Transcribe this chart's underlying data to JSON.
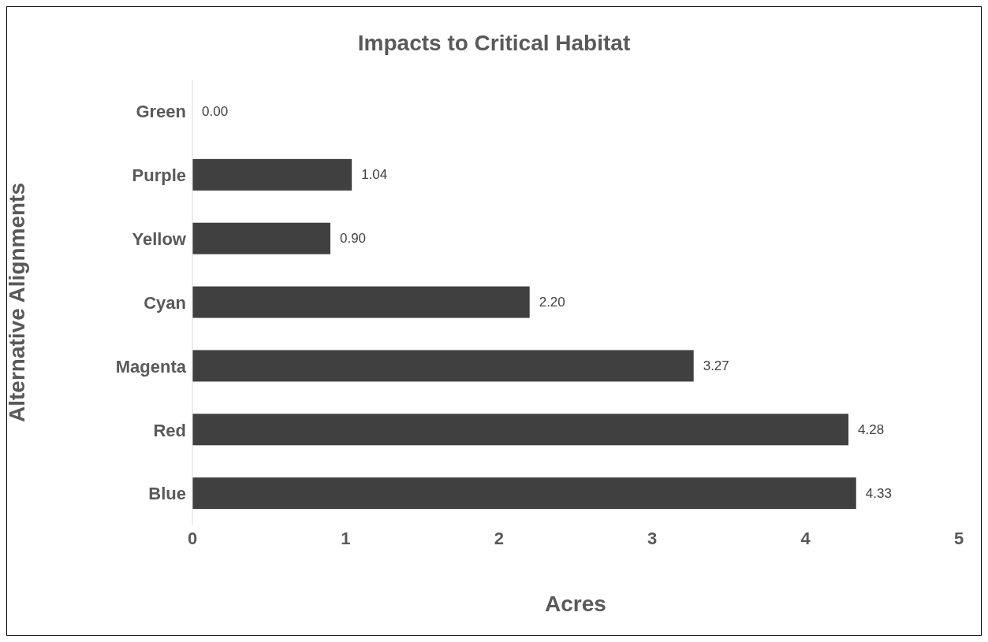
{
  "chart_data": {
    "type": "bar",
    "orientation": "horizontal",
    "title": "Impacts to Critical Habitat",
    "xlabel": "Acres",
    "ylabel": "Alternative Alignments",
    "categories": [
      "Green",
      "Purple",
      "Yellow",
      "Cyan",
      "Magenta",
      "Red",
      "Blue"
    ],
    "values": [
      0.0,
      1.04,
      0.9,
      2.2,
      3.27,
      4.28,
      4.33
    ],
    "value_labels": [
      "0.00",
      "1.04",
      "0.90",
      "2.20",
      "3.27",
      "4.28",
      "4.33"
    ],
    "color": "#404040",
    "xlim": [
      0,
      5
    ],
    "xticks": [
      0,
      1,
      2,
      3,
      4,
      5
    ],
    "grid": false
  }
}
